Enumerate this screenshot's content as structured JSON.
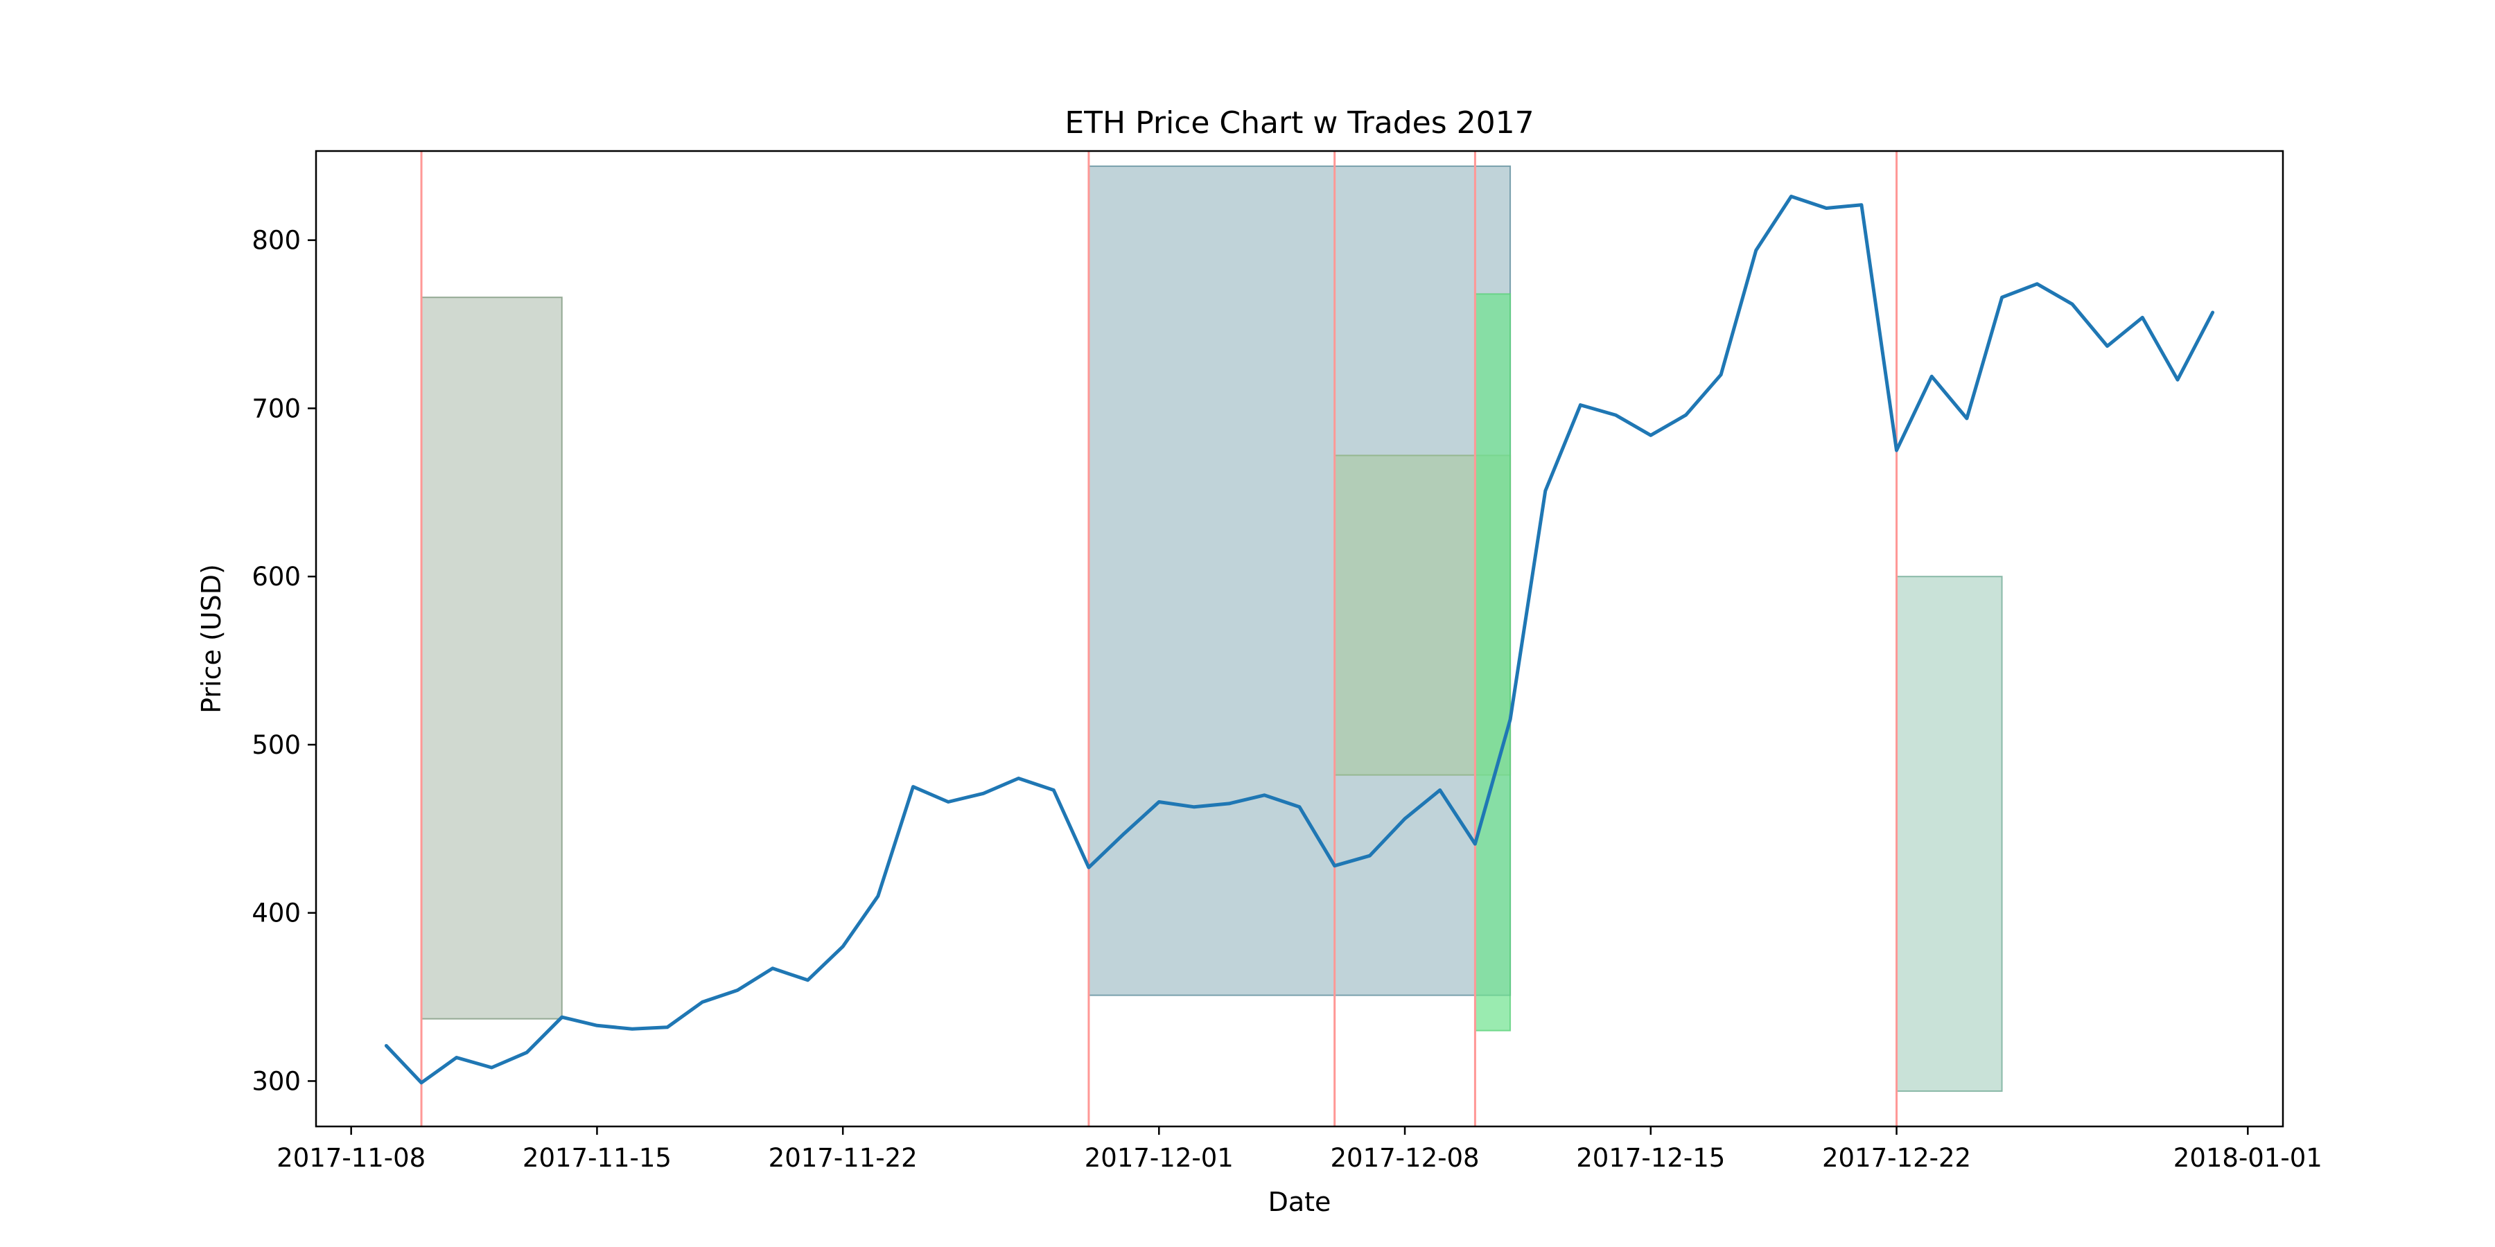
{
  "chart_data": {
    "type": "line",
    "title": "ETH Price Chart w Trades 2017",
    "xlabel": "Date",
    "ylabel": "Price (USD)",
    "xlim": [
      "2017-11-07",
      "2018-01-02"
    ],
    "ylim": [
      273,
      853
    ],
    "grid": false,
    "legend": "none",
    "x_ticks": [
      "2017-11-08",
      "2017-11-15",
      "2017-11-22",
      "2017-12-01",
      "2017-12-08",
      "2017-12-15",
      "2017-12-22",
      "2018-01-01"
    ],
    "y_ticks": [
      300,
      400,
      500,
      600,
      700,
      800
    ],
    "series": [
      {
        "color": "#1f77b4",
        "points": [
          [
            "2017-11-09",
            321
          ],
          [
            "2017-11-10",
            299
          ],
          [
            "2017-11-11",
            314
          ],
          [
            "2017-11-12",
            308
          ],
          [
            "2017-11-13",
            317
          ],
          [
            "2017-11-14",
            338
          ],
          [
            "2017-11-15",
            333
          ],
          [
            "2017-11-16",
            331
          ],
          [
            "2017-11-17",
            332
          ],
          [
            "2017-11-18",
            347
          ],
          [
            "2017-11-19",
            354
          ],
          [
            "2017-11-20",
            367
          ],
          [
            "2017-11-21",
            360
          ],
          [
            "2017-11-22",
            380
          ],
          [
            "2017-11-23",
            410
          ],
          [
            "2017-11-24",
            475
          ],
          [
            "2017-11-25",
            466
          ],
          [
            "2017-11-26",
            471
          ],
          [
            "2017-11-27",
            480
          ],
          [
            "2017-11-28",
            473
          ],
          [
            "2017-11-29",
            427
          ],
          [
            "2017-11-30",
            447
          ],
          [
            "2017-12-01",
            466
          ],
          [
            "2017-12-02",
            463
          ],
          [
            "2017-12-03",
            465
          ],
          [
            "2017-12-04",
            470
          ],
          [
            "2017-12-05",
            463
          ],
          [
            "2017-12-06",
            428
          ],
          [
            "2017-12-07",
            434
          ],
          [
            "2017-12-08",
            456
          ],
          [
            "2017-12-09",
            473
          ],
          [
            "2017-12-10",
            441
          ],
          [
            "2017-12-11",
            515
          ],
          [
            "2017-12-12",
            651
          ],
          [
            "2017-12-13",
            702
          ],
          [
            "2017-12-14",
            696
          ],
          [
            "2017-12-15",
            684
          ],
          [
            "2017-12-16",
            696
          ],
          [
            "2017-12-17",
            720
          ],
          [
            "2017-12-18",
            794
          ],
          [
            "2017-12-19",
            826
          ],
          [
            "2017-12-20",
            819
          ],
          [
            "2017-12-21",
            821
          ],
          [
            "2017-12-22",
            675
          ],
          [
            "2017-12-23",
            719
          ],
          [
            "2017-12-24",
            694
          ],
          [
            "2017-12-25",
            766
          ],
          [
            "2017-12-26",
            774
          ],
          [
            "2017-12-27",
            762
          ],
          [
            "2017-12-28",
            737
          ],
          [
            "2017-12-29",
            754
          ],
          [
            "2017-12-30",
            717
          ],
          [
            "2017-12-31",
            757
          ]
        ]
      }
    ],
    "trade_lines": {
      "color": "#ff9896",
      "dates": [
        "2017-11-10",
        "2017-11-29",
        "2017-12-06",
        "2017-12-10",
        "2017-12-22"
      ]
    },
    "trade_boxes": [
      {
        "x": [
          "2017-11-10",
          "2017-11-14"
        ],
        "y": [
          337,
          766
        ],
        "fill": "#a2b3a1",
        "fill_opacity": 0.5,
        "stroke": "#7f9a80"
      },
      {
        "x": [
          "2017-11-29",
          "2017-12-11"
        ],
        "y": [
          351,
          844
        ],
        "fill": "#81a8b3",
        "fill_opacity": 0.5,
        "stroke": "#5f8e9c"
      },
      {
        "x": [
          "2017-12-06",
          "2017-12-11"
        ],
        "y": [
          482,
          672
        ],
        "fill": "#a5c89a",
        "fill_opacity": 0.55,
        "stroke": "#8db183"
      },
      {
        "x": [
          "2017-12-10",
          "2017-12-11"
        ],
        "y": [
          330,
          768
        ],
        "fill": "#6fe38f",
        "fill_opacity": 0.7,
        "stroke": "#5cd17c"
      },
      {
        "x": [
          "2017-12-22",
          "2017-12-25"
        ],
        "y": [
          294,
          600
        ],
        "fill": "#94c6b2",
        "fill_opacity": 0.5,
        "stroke": "#76ad98"
      }
    ]
  }
}
